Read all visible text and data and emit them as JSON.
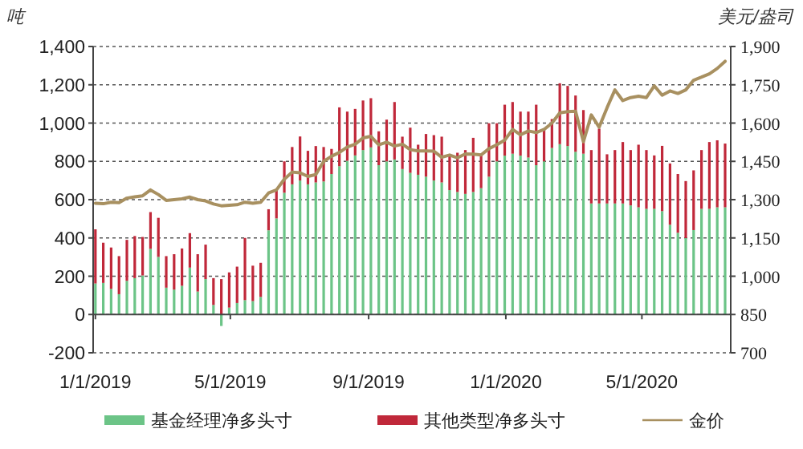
{
  "chart_data": {
    "type": "bar",
    "stacked": true,
    "ylabel": "吨",
    "y2label": "美元/盎司",
    "legend": "bottom",
    "grid": "y",
    "x": [
      "2019-01-01",
      "2019-01-08",
      "2019-01-15",
      "2019-01-22",
      "2019-01-29",
      "2019-02-05",
      "2019-02-12",
      "2019-02-19",
      "2019-02-26",
      "2019-03-05",
      "2019-03-12",
      "2019-03-19",
      "2019-03-26",
      "2019-04-02",
      "2019-04-09",
      "2019-04-16",
      "2019-04-23",
      "2019-04-30",
      "2019-05-07",
      "2019-05-14",
      "2019-05-21",
      "2019-05-28",
      "2019-06-04",
      "2019-06-11",
      "2019-06-18",
      "2019-06-25",
      "2019-07-02",
      "2019-07-09",
      "2019-07-16",
      "2019-07-23",
      "2019-07-30",
      "2019-08-06",
      "2019-08-13",
      "2019-08-20",
      "2019-08-27",
      "2019-09-03",
      "2019-09-10",
      "2019-09-17",
      "2019-09-24",
      "2019-10-01",
      "2019-10-08",
      "2019-10-15",
      "2019-10-22",
      "2019-10-29",
      "2019-11-05",
      "2019-11-12",
      "2019-11-19",
      "2019-11-26",
      "2019-12-03",
      "2019-12-10",
      "2019-12-17",
      "2019-12-24",
      "2019-12-31",
      "2020-01-07",
      "2020-01-14",
      "2020-01-21",
      "2020-01-28",
      "2020-02-04",
      "2020-02-11",
      "2020-02-18",
      "2020-02-25",
      "2020-03-03",
      "2020-03-10",
      "2020-03-17",
      "2020-03-24",
      "2020-03-31",
      "2020-04-07",
      "2020-04-14",
      "2020-04-21",
      "2020-04-28",
      "2020-05-05",
      "2020-05-12",
      "2020-05-19",
      "2020-05-26",
      "2020-06-02",
      "2020-06-09",
      "2020-06-16",
      "2020-06-23",
      "2020-06-30",
      "2020-07-07",
      "2020-07-14"
    ],
    "xlim": [
      "2018-12-30",
      "2020-07-19"
    ],
    "xticks": [
      {
        "value": "2019-01-01",
        "label": "1/1/2019"
      },
      {
        "value": "2019-05-01",
        "label": "5/1/2019"
      },
      {
        "value": "2019-09-01",
        "label": "9/1/2019"
      },
      {
        "value": "2020-01-01",
        "label": "1/1/2020"
      },
      {
        "value": "2020-05-01",
        "label": "5/1/2020"
      }
    ],
    "ylim": [
      -200,
      1400
    ],
    "yticks": [
      {
        "value": -200,
        "label": "-200"
      },
      0,
      200,
      400,
      600,
      800,
      {
        "value": 1000,
        "label": "1,000"
      },
      {
        "value": 1200,
        "label": "1,200"
      },
      {
        "value": 1400,
        "label": "1,400"
      }
    ],
    "y2lim": [
      700,
      1900
    ],
    "y2ticks": [
      700,
      850,
      {
        "value": 1000,
        "label": "1,000"
      },
      {
        "value": 1150,
        "label": "1,150"
      },
      {
        "value": 1300,
        "label": "1,300"
      },
      {
        "value": 1450,
        "label": "1,450"
      },
      {
        "value": 1600,
        "label": "1,600"
      },
      {
        "value": 1750,
        "label": "1,750"
      },
      {
        "value": 1900,
        "label": "1,900"
      }
    ],
    "series": [
      {
        "name": "基金经理净多头寸",
        "color": "#6cc487",
        "values": [
          162,
          165,
          134,
          106,
          176,
          190,
          204,
          343,
          301,
          140,
          130,
          150,
          245,
          120,
          185,
          50,
          -60,
          36,
          60,
          75,
          70,
          92,
          440,
          502,
          636,
          680,
          700,
          680,
          690,
          695,
          734,
          775,
          803,
          831,
          859,
          873,
          780,
          800,
          810,
          760,
          740,
          730,
          720,
          700,
          690,
          650,
          640,
          630,
          640,
          660,
          720,
          800,
          830,
          840,
          830,
          820,
          780,
          800,
          870,
          890,
          880,
          850,
          840,
          580,
          580,
          580,
          580,
          580,
          570,
          560,
          552,
          552,
          540,
          469,
          427,
          399,
          441,
          552,
          552,
          560,
          560
        ]
      },
      {
        "name": "其他类型净多头寸",
        "color": "#c0283a",
        "values": [
          283,
          210,
          216,
          199,
          214,
          220,
          201,
          192,
          204,
          165,
          185,
          195,
          180,
          195,
          180,
          140,
          185,
          184,
          190,
          325,
          185,
          178,
          110,
          153,
          164,
          195,
          230,
          175,
          190,
          180,
          131,
          307,
          257,
          243,
          259,
          257,
          177,
          218,
          300,
          169,
          236,
          157,
          223,
          237,
          239,
          181,
          205,
          229,
          283,
          171,
          279,
          199,
          266,
          270,
          230,
          240,
          316,
          171,
          151,
          318,
          314,
          294,
          228,
          279,
          391,
          257,
          279,
          321,
          289,
          327,
          307,
          279,
          341,
          320,
          307,
          298,
          312,
          307,
          349,
          350,
          333
        ]
      },
      {
        "name": "金价",
        "type": "line",
        "axis": "y2",
        "color": "#a89060",
        "values": [
          1286,
          1284,
          1290,
          1288,
          1306,
          1311,
          1315,
          1338,
          1320,
          1297,
          1300,
          1303,
          1310,
          1300,
          1295,
          1283,
          1276,
          1278,
          1280,
          1290,
          1286,
          1290,
          1326,
          1338,
          1380,
          1408,
          1405,
          1391,
          1398,
          1450,
          1470,
          1485,
          1506,
          1517,
          1542,
          1548,
          1515,
          1525,
          1510,
          1517,
          1496,
          1491,
          1491,
          1490,
          1466,
          1475,
          1464,
          1479,
          1478,
          1475,
          1500,
          1515,
          1533,
          1575,
          1554,
          1569,
          1563,
          1575,
          1600,
          1640,
          1645,
          1646,
          1527,
          1632,
          1584,
          1660,
          1730,
          1688,
          1700,
          1705,
          1700,
          1746,
          1709,
          1726,
          1716,
          1730,
          1768,
          1780,
          1793,
          1814,
          1842
        ]
      }
    ]
  }
}
